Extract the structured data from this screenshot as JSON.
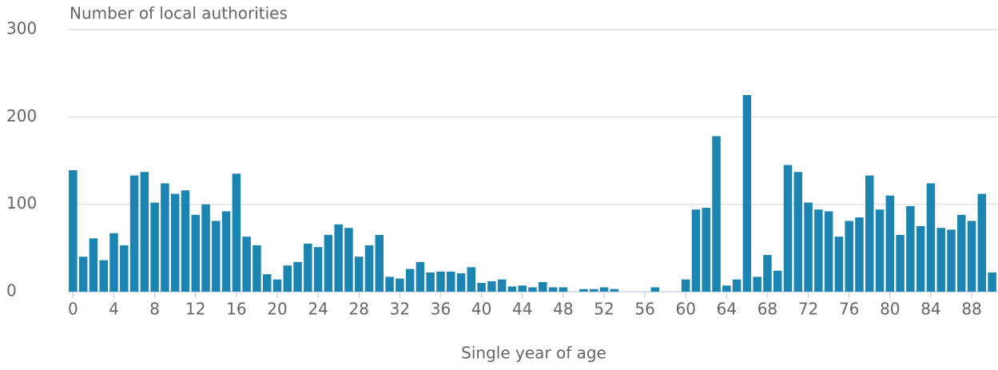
{
  "chart_data": {
    "type": "bar",
    "title": "Number of local authorities",
    "x_label": "Single year of age",
    "x": [
      0,
      1,
      2,
      3,
      4,
      5,
      6,
      7,
      8,
      9,
      10,
      11,
      12,
      13,
      14,
      15,
      16,
      17,
      18,
      19,
      20,
      21,
      22,
      23,
      24,
      25,
      26,
      27,
      28,
      29,
      30,
      31,
      32,
      33,
      34,
      35,
      36,
      37,
      38,
      39,
      40,
      41,
      42,
      43,
      44,
      45,
      46,
      47,
      48,
      49,
      50,
      51,
      52,
      53,
      54,
      55,
      56,
      57,
      58,
      59,
      60,
      61,
      62,
      63,
      64,
      65,
      66,
      67,
      68,
      69,
      70,
      71,
      72,
      73,
      74,
      75,
      76,
      77,
      78,
      79,
      80,
      81,
      82,
      83,
      84,
      85,
      86,
      87,
      88,
      89,
      90
    ],
    "values": [
      139,
      40,
      61,
      36,
      67,
      53,
      133,
      137,
      102,
      124,
      112,
      116,
      88,
      100,
      81,
      92,
      135,
      63,
      53,
      20,
      14,
      30,
      34,
      55,
      51,
      65,
      77,
      73,
      40,
      53,
      65,
      17,
      15,
      26,
      34,
      22,
      23,
      23,
      21,
      28,
      10,
      12,
      14,
      6,
      7,
      5,
      11,
      5,
      5,
      0,
      3,
      3,
      5,
      3,
      0,
      0,
      0,
      5,
      0,
      0,
      14,
      94,
      96,
      178,
      7,
      14,
      225,
      17,
      42,
      24,
      145,
      137,
      102,
      94,
      92,
      63,
      81,
      85,
      133,
      94,
      110,
      65,
      98,
      75,
      124,
      73,
      71,
      88,
      81,
      112,
      22
    ],
    "color": "#1b84b1",
    "xlim": [
      -0.5,
      90.5
    ],
    "xticks": [
      0,
      4,
      8,
      12,
      16,
      20,
      24,
      28,
      32,
      36,
      40,
      44,
      48,
      52,
      56,
      60,
      64,
      68,
      72,
      76,
      80,
      84,
      88
    ],
    "ylim": [
      0,
      300
    ],
    "yticks": [
      0,
      100,
      200,
      300
    ],
    "grid": true
  }
}
